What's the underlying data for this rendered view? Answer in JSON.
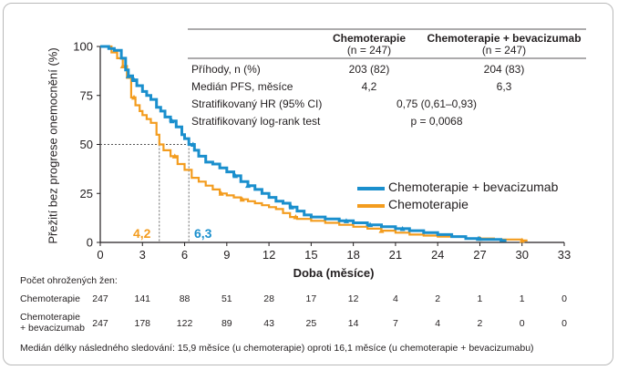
{
  "chart_data": {
    "type": "line",
    "subtype": "kaplan-meier",
    "xlabel": "Doba (měsíce)",
    "ylabel": "Přežití bez progrese onemocnění (%)",
    "xlim": [
      0,
      33
    ],
    "ylim": [
      0,
      100
    ],
    "x_ticks": [
      0,
      3,
      6,
      9,
      12,
      15,
      18,
      21,
      24,
      27,
      30,
      33
    ],
    "y_ticks": [
      0,
      25,
      50,
      75,
      100
    ],
    "grid": false,
    "legend_position": "right",
    "medians": {
      "chemo": "4,2",
      "bev": "6,3"
    },
    "series": [
      {
        "name": "Chemoterapie + bevacizumab",
        "color": "#1a8fcd",
        "points": [
          [
            0,
            100
          ],
          [
            0.6,
            99
          ],
          [
            1.0,
            98
          ],
          [
            1.5,
            94
          ],
          [
            1.8,
            88
          ],
          [
            2.0,
            85
          ],
          [
            2.3,
            83
          ],
          [
            2.6,
            80
          ],
          [
            3.0,
            77
          ],
          [
            3.3,
            75
          ],
          [
            3.6,
            73
          ],
          [
            4.0,
            69
          ],
          [
            4.3,
            67
          ],
          [
            4.6,
            64
          ],
          [
            5.0,
            62
          ],
          [
            5.4,
            59
          ],
          [
            5.8,
            55
          ],
          [
            6.0,
            53
          ],
          [
            6.3,
            50
          ],
          [
            6.7,
            47
          ],
          [
            7.0,
            44
          ],
          [
            7.5,
            41
          ],
          [
            8.0,
            40
          ],
          [
            8.5,
            38
          ],
          [
            9.0,
            36
          ],
          [
            9.5,
            34
          ],
          [
            10.0,
            31
          ],
          [
            10.5,
            29
          ],
          [
            11.0,
            27
          ],
          [
            11.5,
            25
          ],
          [
            12.0,
            23
          ],
          [
            12.5,
            21
          ],
          [
            13.0,
            20
          ],
          [
            13.5,
            18
          ],
          [
            14.0,
            16
          ],
          [
            14.5,
            14
          ],
          [
            15.0,
            13
          ],
          [
            16.0,
            12
          ],
          [
            17.0,
            11
          ],
          [
            18.0,
            10
          ],
          [
            19.0,
            9
          ],
          [
            20.0,
            8
          ],
          [
            21.0,
            7
          ],
          [
            22.0,
            6
          ],
          [
            23.0,
            5
          ],
          [
            24.0,
            4
          ],
          [
            25.0,
            3
          ],
          [
            26.0,
            2
          ],
          [
            27.0,
            1.5
          ],
          [
            28.5,
            1
          ]
        ],
        "censor_x": [
          2.0,
          2.4,
          5.1,
          6.6,
          9.6,
          10.5,
          13.6,
          17.5,
          19.2,
          21.5,
          26.9
        ]
      },
      {
        "name": "Chemoterapie",
        "color": "#f39c1e",
        "points": [
          [
            0,
            100
          ],
          [
            0.8,
            97
          ],
          [
            1.2,
            94
          ],
          [
            1.6,
            90
          ],
          [
            1.9,
            84
          ],
          [
            2.2,
            74
          ],
          [
            2.5,
            70
          ],
          [
            2.8,
            67
          ],
          [
            3.0,
            65
          ],
          [
            3.3,
            63
          ],
          [
            3.6,
            61
          ],
          [
            4.0,
            55
          ],
          [
            4.2,
            50
          ],
          [
            4.5,
            47
          ],
          [
            5.0,
            44
          ],
          [
            5.5,
            40
          ],
          [
            6.0,
            37
          ],
          [
            6.5,
            33
          ],
          [
            7.0,
            31
          ],
          [
            7.5,
            29
          ],
          [
            8.0,
            27
          ],
          [
            8.5,
            25
          ],
          [
            9.0,
            24
          ],
          [
            9.5,
            23
          ],
          [
            10.0,
            22
          ],
          [
            10.5,
            21
          ],
          [
            11.0,
            20
          ],
          [
            11.5,
            19
          ],
          [
            12.0,
            18
          ],
          [
            12.5,
            17
          ],
          [
            13.0,
            15
          ],
          [
            13.5,
            13
          ],
          [
            14.0,
            12
          ],
          [
            15.0,
            11
          ],
          [
            16.0,
            10
          ],
          [
            17.0,
            9
          ],
          [
            18.0,
            8
          ],
          [
            19.0,
            7
          ],
          [
            20.0,
            6
          ],
          [
            21.0,
            5
          ],
          [
            22.0,
            4
          ],
          [
            23.0,
            3.5
          ],
          [
            24.0,
            3
          ],
          [
            26.0,
            2
          ],
          [
            28.0,
            1.5
          ],
          [
            30.0,
            1
          ]
        ],
        "censor_x": [
          1.6,
          2.4,
          5.3,
          8.6,
          10.1,
          13.9,
          20.0,
          27.0,
          30.0
        ]
      }
    ]
  },
  "stats_table": {
    "columns": [
      {
        "line1": "Chemoterapie",
        "line2": "(n = 247)"
      },
      {
        "line1": "Chemoterapie + bevacizumab",
        "line2": "(n = 247)"
      }
    ],
    "rows": [
      {
        "label": "Příhody, n (%)",
        "a": "203 (82)",
        "b": "204 (83)"
      },
      {
        "label": "Medián PFS, měsíce",
        "a": "4,2",
        "b": "6,3"
      }
    ],
    "hr_label": "Stratifikovaný HR (95% CI)",
    "hr_value": "0,75 (0,61–0,93)",
    "logrank_label": "Stratifikovaný log-rank test",
    "logrank_value": "p = 0,0068"
  },
  "risk_table": {
    "title": "Počet ohrožených žen:",
    "rows": [
      {
        "label": "Chemoterapie",
        "values": [
          "247",
          "141",
          "88",
          "51",
          "28",
          "17",
          "12",
          "4",
          "2",
          "1",
          "1",
          "0"
        ]
      },
      {
        "label1": "Chemoterapie",
        "label2": "+ bevacizumab",
        "values": [
          "247",
          "178",
          "122",
          "89",
          "43",
          "25",
          "14",
          "7",
          "4",
          "2",
          "0",
          "0"
        ]
      }
    ]
  },
  "footnote": "Medián délky následného sledování: 15,9 měsíce (u chemoterapie) oproti 16,1 měsíce (u chemoterapie + bevacizumabu)"
}
